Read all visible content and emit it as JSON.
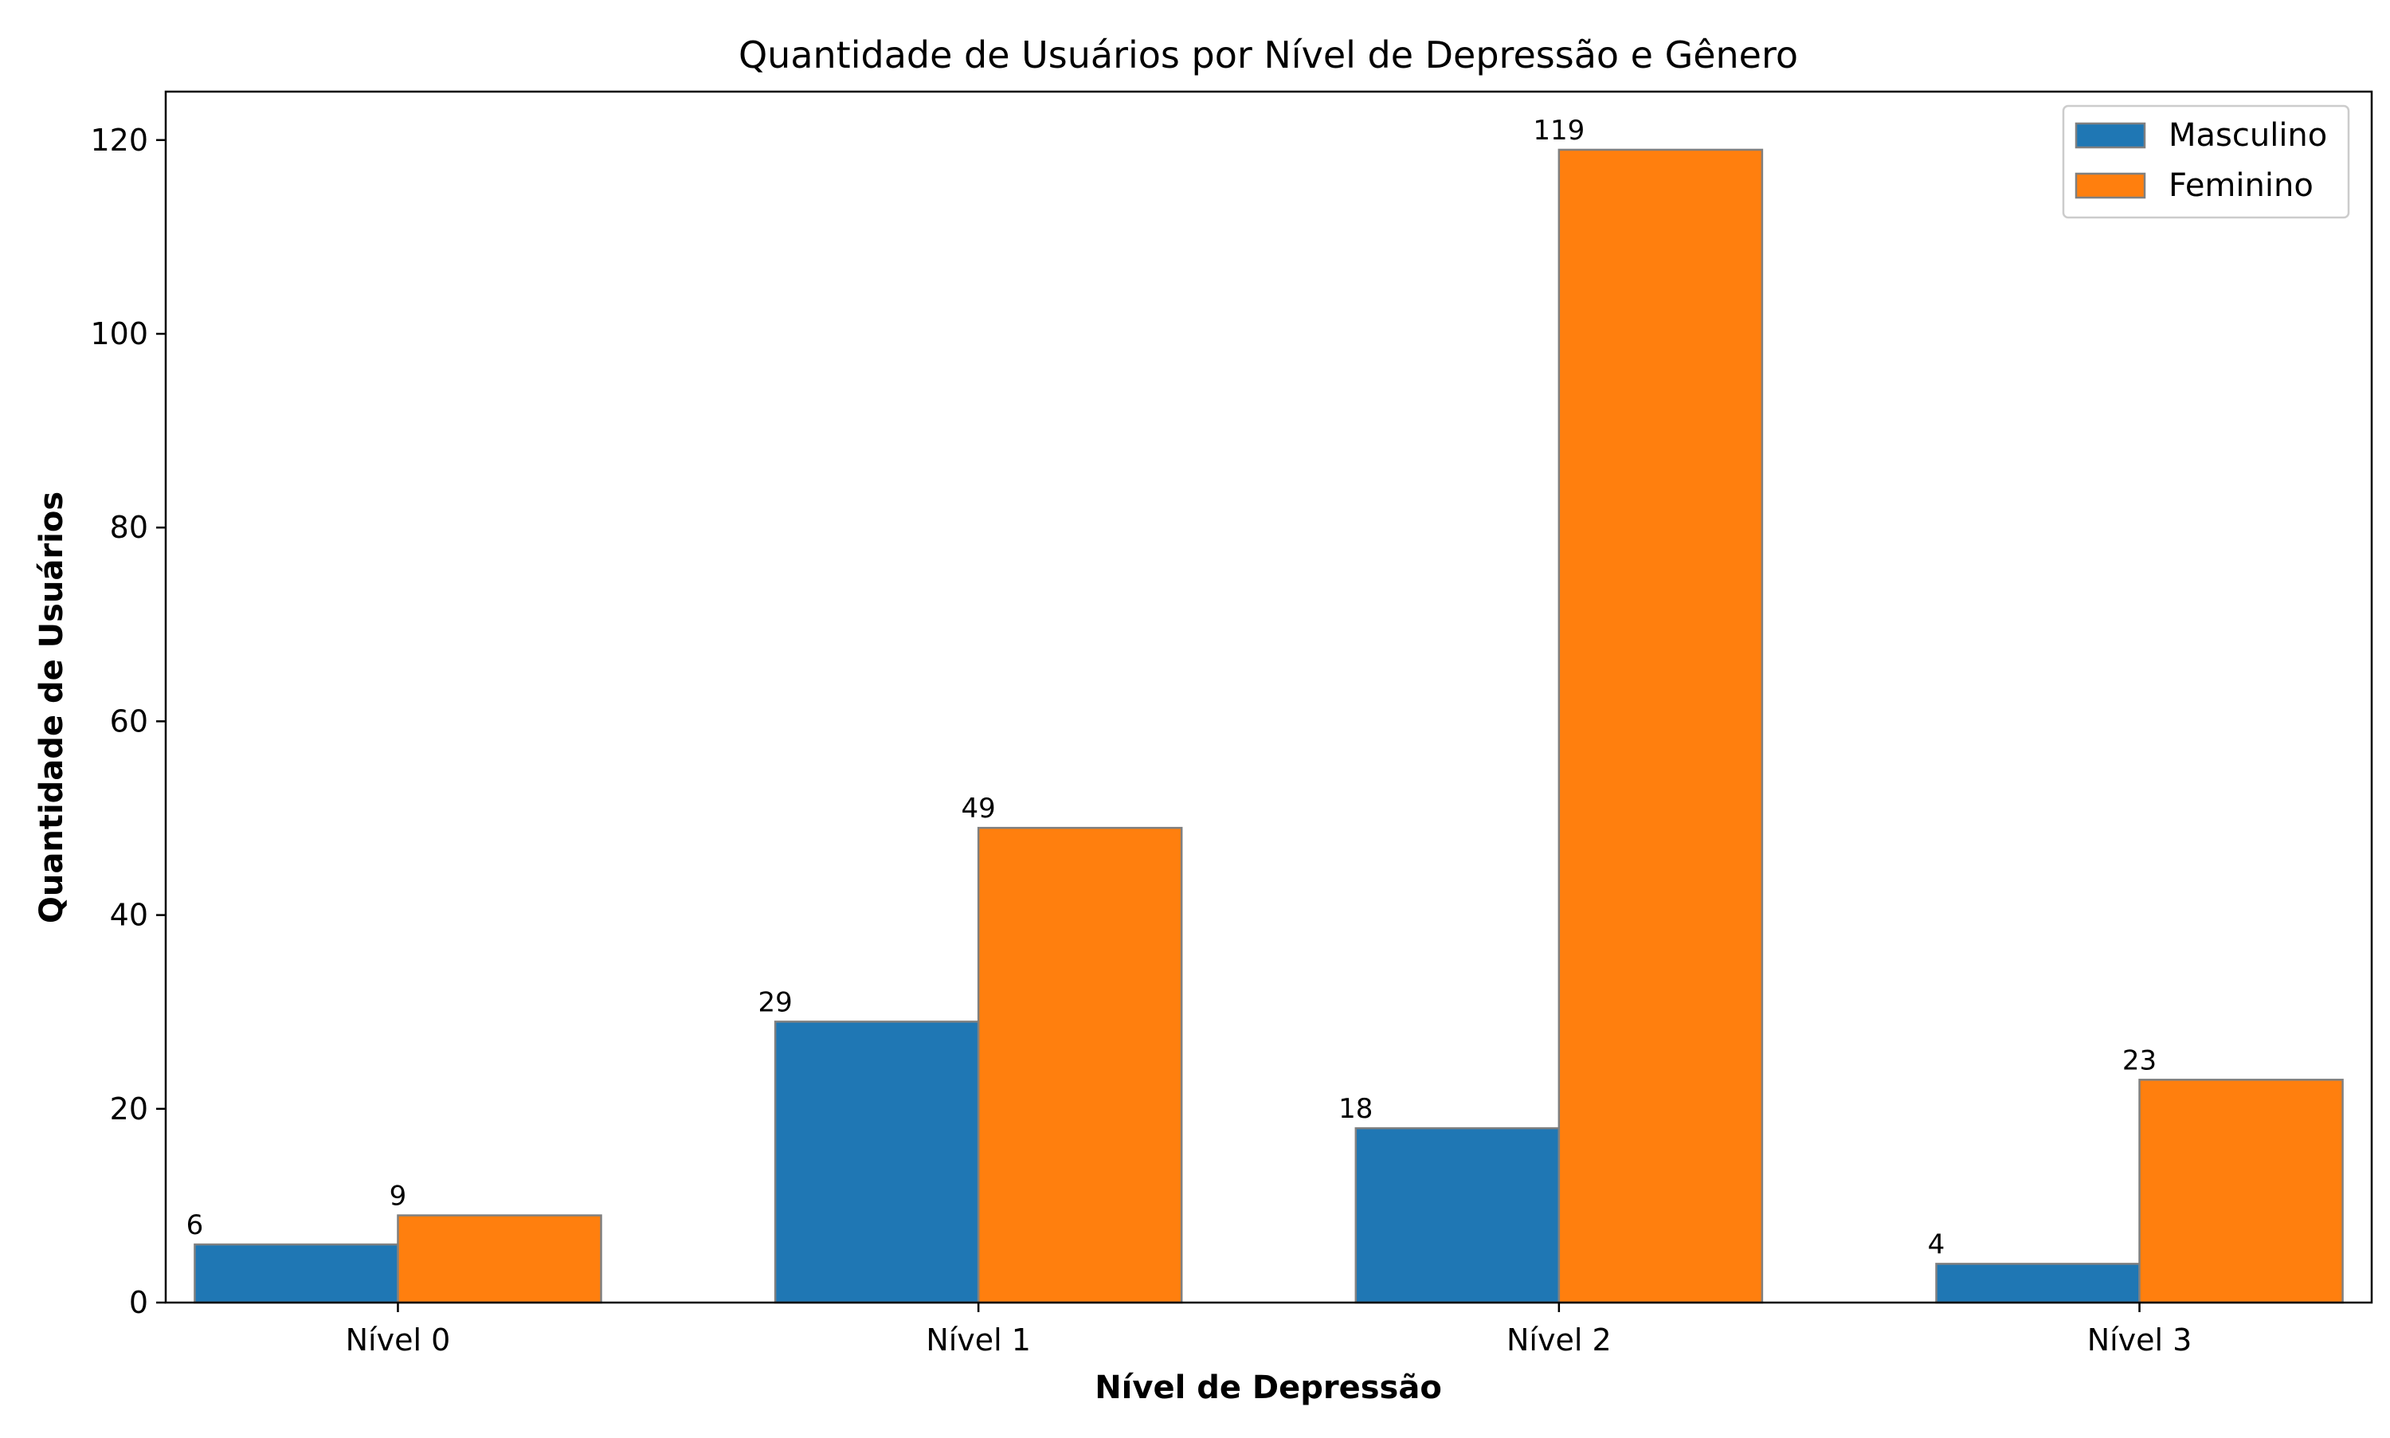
{
  "chart_data": {
    "type": "bar",
    "title": "Quantidade de Usuários por Nível de Depressão e Gênero",
    "xlabel": "Nível de Depressão",
    "ylabel": "Quantidade de Usuários",
    "categories": [
      "Nível 0",
      "Nível 1",
      "Nível 2",
      "Nível 3"
    ],
    "series": [
      {
        "name": "Masculino",
        "values": [
          6,
          29,
          18,
          4
        ],
        "color": "#1f77b4"
      },
      {
        "name": "Feminino",
        "values": [
          9,
          49,
          119,
          23
        ],
        "color": "#ff7f0e"
      }
    ],
    "ylim": [
      0,
      125
    ],
    "yticks": [
      0,
      20,
      40,
      60,
      80,
      100,
      120
    ],
    "grid": false,
    "legend_position": "top-right",
    "bar_edge_color": "#808080"
  }
}
